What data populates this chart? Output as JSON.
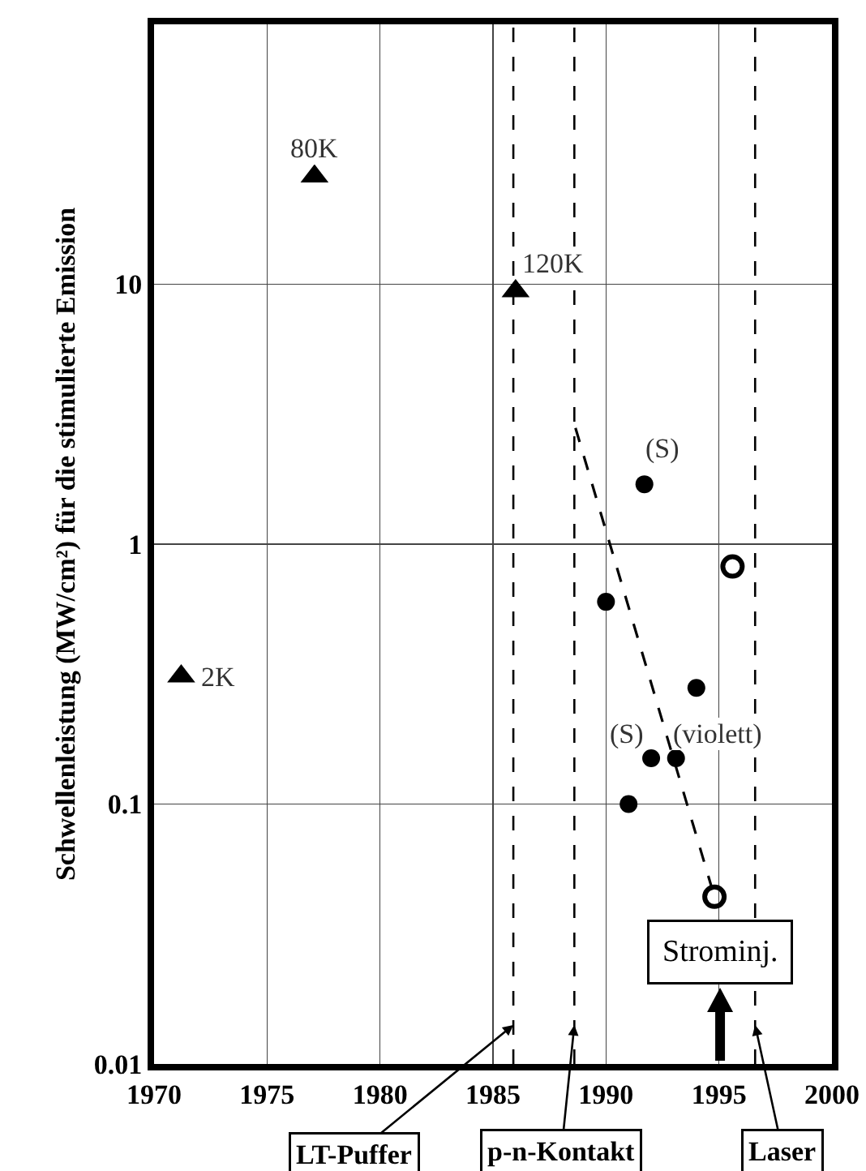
{
  "chart_data": {
    "type": "scatter",
    "ylabel": "Schwellenleistung (MW/cm²) für die stimulierte Emission",
    "xlim": [
      1970,
      2000
    ],
    "xticks": [
      1970,
      1975,
      1980,
      1985,
      1990,
      1995,
      2000
    ],
    "ylim": [
      0.01,
      100
    ],
    "yticks": [
      0.01,
      0.1,
      1,
      10
    ],
    "log": "y",
    "grid": true,
    "series": [
      {
        "marker": "triangle",
        "color": "#000000",
        "x": [
          1971.2,
          1977.1,
          1986.0
        ],
        "values": [
          0.31,
          26,
          9.4
        ]
      },
      {
        "marker": "circle",
        "color": "#000000",
        "x": [
          1990.0,
          1991.0,
          1991.7,
          1992.0,
          1993.1,
          1994.0
        ],
        "values": [
          0.6,
          0.1,
          1.7,
          0.15,
          0.15,
          0.28
        ]
      },
      {
        "marker": "circle-open",
        "color": "#000000",
        "x": [
          1994.8,
          1995.6
        ],
        "values": [
          0.044,
          0.82
        ]
      },
      {
        "type": "line",
        "line_style": "dashed",
        "marker": "none",
        "color": "#000000",
        "x": [
          1988.65,
          1994.8
        ],
        "values": [
          2.8,
          0.044
        ]
      }
    ],
    "ref_lines": [
      {
        "axis": "x",
        "value": 1985.9,
        "label": "LT-Puffer",
        "line_style": "dashed"
      },
      {
        "axis": "x",
        "value": 1988.6,
        "label": "p-n-Kontakt",
        "line_style": "dashed"
      },
      {
        "axis": "x",
        "value": 1996.6,
        "label": "Laser",
        "line_style": "dashed"
      }
    ],
    "annotations": [
      {
        "text": "80K",
        "x": 1977.1,
        "y": 26
      },
      {
        "text": "120K",
        "x": 1986.0,
        "y": 9.4
      },
      {
        "text": "2K",
        "x": 1971.2,
        "y": 0.31
      },
      {
        "text": "(S)",
        "x": 1991.7,
        "y": 1.7
      },
      {
        "text": "(S)",
        "x": 1992.0,
        "y": 0.15
      },
      {
        "text": "(violett)",
        "x": 1993.1,
        "y": 0.15
      },
      "Strominj."
    ]
  }
}
